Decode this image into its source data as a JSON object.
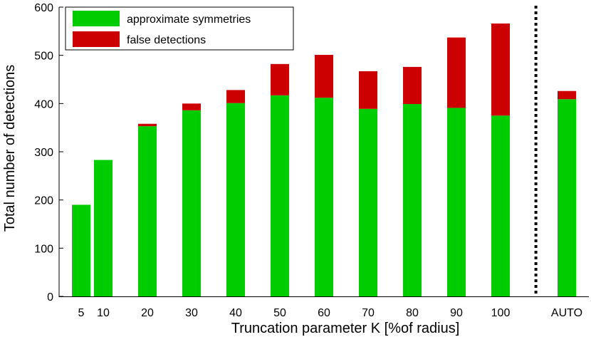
{
  "chart_data": {
    "type": "bar",
    "stacked": true,
    "categories": [
      "5",
      "10",
      "20",
      "30",
      "40",
      "50",
      "60",
      "70",
      "80",
      "90",
      "100",
      "AUTO"
    ],
    "x_positions": [
      5,
      10,
      20,
      30,
      40,
      50,
      60,
      70,
      80,
      90,
      100,
      115
    ],
    "series": [
      {
        "name": "approximate symmetries",
        "color": "#00cc00",
        "values": [
          190,
          283,
          353,
          386,
          401,
          417,
          412,
          389,
          399,
          391,
          375,
          409
        ]
      },
      {
        "name": "false detections",
        "color": "#cc0000",
        "values": [
          0,
          0,
          5,
          14,
          27,
          65,
          89,
          78,
          77,
          146,
          191,
          17
        ]
      }
    ],
    "title": "",
    "xlabel": "Truncation parameter K [%of radius]",
    "ylabel": "Total number of detections",
    "ylim": [
      0,
      600
    ],
    "yticks": [
      0,
      100,
      200,
      300,
      400,
      500,
      600
    ],
    "xlim": [
      0,
      120
    ],
    "separator_x": 108,
    "legend_position": "top-left",
    "grid": false
  }
}
